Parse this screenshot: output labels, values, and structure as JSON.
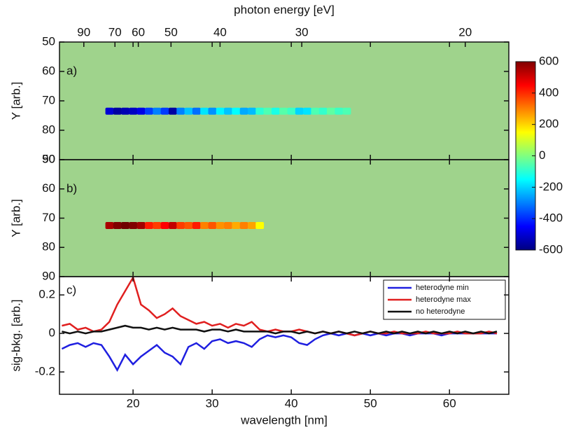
{
  "chart_data": [
    {
      "type": "heatmap",
      "panel_label": "a)",
      "ylabel": "Y [arb.]",
      "x2label": "photon energy [eV]",
      "xlim": [
        10.7,
        67.5
      ],
      "xticks": [
        20,
        30,
        40,
        50,
        60
      ],
      "x2ticks": [
        90,
        70,
        60,
        50,
        40,
        30,
        20
      ],
      "ylim": [
        50,
        90
      ],
      "yticks": [
        50,
        60,
        70,
        80,
        90
      ],
      "streak_y": 73.5,
      "x": [
        17,
        18,
        19,
        20,
        21,
        22,
        23,
        24,
        25,
        26,
        27,
        28,
        29,
        30,
        31,
        32,
        33,
        34,
        35,
        36,
        37,
        38,
        39,
        40,
        41,
        42,
        43,
        44,
        45,
        46,
        47
      ],
      "values": [
        -500,
        -560,
        -540,
        -520,
        -480,
        -380,
        -300,
        -380,
        -560,
        -300,
        -220,
        -320,
        -180,
        -280,
        -160,
        -220,
        -150,
        -250,
        -230,
        -100,
        -60,
        -120,
        -50,
        -80,
        -200,
        -180,
        -60,
        -90,
        -40,
        -80,
        -60
      ],
      "colorbar": {
        "clim": [
          -600,
          600
        ],
        "ticks": [
          600,
          400,
          200,
          0,
          -200,
          -400,
          -600
        ]
      }
    },
    {
      "type": "heatmap",
      "panel_label": "b)",
      "ylabel": "Y [arb.]",
      "xlim": [
        10.7,
        67.5
      ],
      "xticks": [
        20,
        30,
        40,
        50,
        60
      ],
      "ylim": [
        50,
        90
      ],
      "yticks": [
        50,
        60,
        70,
        80,
        90
      ],
      "streak_y": 72.5,
      "x": [
        17,
        18,
        19,
        20,
        21,
        22,
        23,
        24,
        25,
        26,
        27,
        28,
        29,
        30,
        31,
        32,
        33,
        34,
        35,
        36
      ],
      "values": [
        550,
        600,
        620,
        600,
        560,
        420,
        380,
        450,
        520,
        380,
        350,
        420,
        300,
        350,
        280,
        300,
        250,
        300,
        260,
        150
      ],
      "colorbar": {
        "clim": [
          -600,
          600
        ]
      }
    },
    {
      "type": "line",
      "panel_label": "c)",
      "ylabel": "sig-bkg. [arb.]",
      "xlabel": "wavelength [nm]",
      "xlim": [
        10.7,
        67.5
      ],
      "xticks": [
        20,
        30,
        40,
        50,
        60
      ],
      "ylim": [
        -0.316,
        0.295
      ],
      "yticks": [
        0.2,
        0,
        -0.2
      ],
      "legend": "upper right",
      "x": [
        11,
        12,
        13,
        14,
        15,
        16,
        17,
        18,
        19,
        20,
        21,
        22,
        23,
        24,
        25,
        26,
        27,
        28,
        29,
        30,
        31,
        32,
        33,
        34,
        35,
        36,
        37,
        38,
        39,
        40,
        41,
        42,
        43,
        44,
        45,
        46,
        47,
        48,
        49,
        50,
        51,
        52,
        53,
        54,
        55,
        56,
        57,
        58,
        59,
        60,
        61,
        62,
        63,
        64,
        65,
        66
      ],
      "series": [
        {
          "name": "heterodyne min",
          "color": "#1f1fe0",
          "values": [
            -0.08,
            -0.06,
            -0.05,
            -0.07,
            -0.05,
            -0.06,
            -0.12,
            -0.19,
            -0.11,
            -0.16,
            -0.12,
            -0.09,
            -0.06,
            -0.1,
            -0.12,
            -0.16,
            -0.07,
            -0.05,
            -0.08,
            -0.04,
            -0.03,
            -0.05,
            -0.04,
            -0.05,
            -0.07,
            -0.03,
            -0.01,
            -0.02,
            -0.01,
            -0.02,
            -0.05,
            -0.06,
            -0.03,
            -0.01,
            0.0,
            -0.01,
            0.0,
            -0.01,
            0.0,
            -0.01,
            0.0,
            -0.01,
            0.0,
            0.0,
            -0.01,
            0.0,
            0.0,
            0.0,
            -0.01,
            0.0,
            0.0,
            0.0,
            0.0,
            0.0,
            0.0,
            0.0
          ]
        },
        {
          "name": "heterodyne max",
          "color": "#e01f1f",
          "values": [
            0.04,
            0.05,
            0.02,
            0.03,
            0.01,
            0.02,
            0.06,
            0.15,
            0.22,
            0.29,
            0.15,
            0.12,
            0.08,
            0.1,
            0.13,
            0.09,
            0.07,
            0.05,
            0.06,
            0.04,
            0.05,
            0.03,
            0.05,
            0.04,
            0.06,
            0.02,
            0.01,
            0.02,
            0.01,
            0.01,
            0.02,
            0.01,
            0.0,
            0.01,
            0.0,
            0.01,
            0.0,
            -0.01,
            0.0,
            0.01,
            0.0,
            0.0,
            0.01,
            0.0,
            0.0,
            0.0,
            0.01,
            0.0,
            0.0,
            0.0,
            0.01,
            0.0,
            0.0,
            0.0,
            0.01,
            0.0
          ]
        },
        {
          "name": "no heterodyne",
          "color": "#111111",
          "values": [
            0.01,
            0.0,
            0.01,
            0.0,
            0.01,
            0.01,
            0.02,
            0.03,
            0.04,
            0.03,
            0.03,
            0.02,
            0.03,
            0.02,
            0.03,
            0.02,
            0.02,
            0.02,
            0.01,
            0.02,
            0.02,
            0.01,
            0.02,
            0.01,
            0.01,
            0.01,
            0.01,
            0.0,
            0.01,
            0.01,
            0.0,
            0.01,
            0.0,
            0.01,
            0.0,
            0.01,
            0.0,
            0.01,
            0.0,
            0.01,
            0.0,
            0.01,
            0.0,
            0.01,
            0.0,
            0.01,
            0.0,
            0.01,
            0.0,
            0.01,
            0.0,
            0.01,
            0.0,
            0.01,
            0.0,
            0.01
          ]
        }
      ]
    }
  ]
}
